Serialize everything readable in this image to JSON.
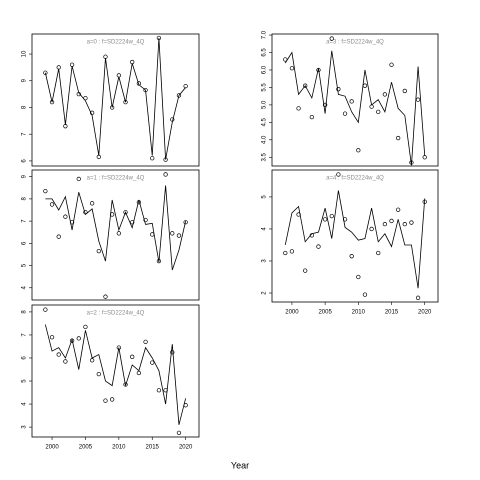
{
  "xlabel": "Year",
  "chart_data": [
    {
      "type": "line",
      "title": "a=0 : f=SD2224w_4Q",
      "x": [
        1999,
        2000,
        2001,
        2002,
        2003,
        2004,
        2005,
        2006,
        2007,
        2008,
        2009,
        2010,
        2011,
        2012,
        2013,
        2014,
        2015,
        2016,
        2017,
        2018,
        2019,
        2020
      ],
      "series": [
        {
          "style": "line",
          "color": "#000000",
          "values": [
            9.3,
            8.2,
            9.45,
            7.35,
            9.55,
            8.55,
            8.25,
            7.7,
            6.2,
            9.85,
            8.0,
            9.15,
            8.2,
            9.65,
            8.85,
            8.65,
            6.2,
            10.6,
            6.05,
            7.45,
            8.45,
            8.75
          ]
        },
        {
          "style": "points",
          "color": "#000000",
          "values": [
            9.3,
            8.2,
            9.5,
            7.3,
            9.6,
            8.5,
            8.35,
            7.8,
            6.15,
            9.9,
            8.0,
            9.2,
            8.2,
            9.7,
            8.9,
            8.65,
            6.1,
            10.6,
            6.05,
            7.55,
            8.45,
            8.8
          ]
        }
      ],
      "xlim": [
        1997,
        2022
      ],
      "ylim": [
        5.81,
        10.75
      ],
      "yticks": [
        6,
        7,
        8,
        9,
        10
      ]
    },
    {
      "type": "line",
      "title": "a=1 : f=SD2224w_4Q",
      "x": [
        1999,
        2000,
        2001,
        2002,
        2003,
        2004,
        2005,
        2006,
        2007,
        2008,
        2009,
        2010,
        2011,
        2012,
        2013,
        2014,
        2015,
        2016,
        2017,
        2018,
        2019,
        2020
      ],
      "series": [
        {
          "style": "line",
          "color": "#000000",
          "values": [
            8.0,
            8.0,
            7.5,
            8.1,
            6.6,
            8.3,
            7.3,
            7.55,
            6.1,
            5.2,
            7.95,
            6.6,
            7.4,
            6.7,
            7.95,
            6.85,
            6.9,
            5.15,
            8.6,
            4.8,
            5.7,
            7.0
          ]
        },
        {
          "style": "points",
          "color": "#000000",
          "values": [
            8.35,
            7.75,
            6.3,
            7.2,
            6.95,
            8.9,
            7.4,
            7.8,
            5.65,
            3.6,
            7.3,
            6.45,
            7.4,
            6.95,
            7.85,
            7.05,
            6.4,
            5.2,
            9.1,
            6.45,
            6.35,
            6.95
          ]
        }
      ],
      "xlim": [
        1997,
        2022
      ],
      "ylim": [
        3.45,
        9.3
      ],
      "yticks": [
        4,
        5,
        6,
        7,
        8,
        9
      ]
    },
    {
      "type": "line",
      "title": "a=2 : f=SD2224w_4Q",
      "x": [
        1999,
        2000,
        2001,
        2002,
        2003,
        2004,
        2005,
        2006,
        2007,
        2008,
        2009,
        2010,
        2011,
        2012,
        2013,
        2014,
        2015,
        2016,
        2017,
        2018,
        2019,
        2020
      ],
      "series": [
        {
          "style": "line",
          "color": "#000000",
          "values": [
            7.45,
            6.3,
            6.45,
            6.0,
            6.8,
            5.5,
            7.2,
            6.0,
            6.15,
            5.0,
            4.8,
            6.45,
            4.8,
            5.7,
            5.45,
            6.45,
            6.0,
            5.45,
            4.0,
            6.6,
            3.1,
            4.25
          ]
        },
        {
          "style": "points",
          "color": "#000000",
          "values": [
            8.1,
            6.9,
            6.15,
            5.85,
            6.75,
            6.85,
            7.35,
            5.9,
            5.3,
            4.15,
            4.2,
            6.45,
            4.85,
            6.05,
            5.35,
            6.7,
            5.8,
            4.6,
            4.6,
            6.25,
            2.75,
            3.95
          ]
        }
      ],
      "xlim": [
        1997,
        2022
      ],
      "ylim": [
        2.57,
        8.3
      ],
      "yticks": [
        3,
        4,
        5,
        6,
        7,
        8
      ],
      "xticks": [
        2000,
        2005,
        2010,
        2015,
        2020
      ]
    },
    {
      "type": "line",
      "title": "a=3 : f=SD2224w_4Q",
      "x": [
        1999,
        2000,
        2001,
        2002,
        2003,
        2004,
        2005,
        2006,
        2007,
        2008,
        2009,
        2010,
        2011,
        2012,
        2013,
        2014,
        2015,
        2016,
        2017,
        2018,
        2019,
        2020
      ],
      "series": [
        {
          "style": "line",
          "color": "#000000",
          "values": [
            6.2,
            6.5,
            5.3,
            5.55,
            5.2,
            6.05,
            4.75,
            6.55,
            5.3,
            5.25,
            4.8,
            4.5,
            6.0,
            5.0,
            5.15,
            4.8,
            5.65,
            4.9,
            4.7,
            3.27,
            6.1,
            3.55
          ]
        },
        {
          "style": "points",
          "color": "#000000",
          "values": [
            6.3,
            6.05,
            4.9,
            5.55,
            4.65,
            6.0,
            5.0,
            6.9,
            5.45,
            4.75,
            5.1,
            3.7,
            5.55,
            4.95,
            4.8,
            5.3,
            6.15,
            4.05,
            5.4,
            3.35,
            5.15,
            3.5
          ]
        }
      ],
      "xlim": [
        1997,
        2022
      ],
      "ylim": [
        3.25,
        7.03
      ],
      "yticks": [
        3.5,
        {
          "value": 4,
          "label": "4.0"
        },
        4.5,
        {
          "value": 5,
          "label": "5.0"
        },
        5.5,
        {
          "value": 6,
          "label": "6.0"
        },
        6.5,
        {
          "value": 7,
          "label": "7.0"
        }
      ]
    },
    {
      "type": "line",
      "title": "a=4 : f=SD2224w_4Q",
      "x": [
        1999,
        2000,
        2001,
        2002,
        2003,
        2004,
        2005,
        2006,
        2007,
        2008,
        2009,
        2010,
        2011,
        2012,
        2013,
        2014,
        2015,
        2016,
        2017,
        2018,
        2019,
        2020
      ],
      "series": [
        {
          "style": "line",
          "color": "#000000",
          "values": [
            3.5,
            4.5,
            4.7,
            3.6,
            3.85,
            3.9,
            4.65,
            3.7,
            5.2,
            4.05,
            3.9,
            3.65,
            3.7,
            4.65,
            3.6,
            3.85,
            3.45,
            4.3,
            3.5,
            3.5,
            2.15,
            4.95
          ]
        },
        {
          "style": "points",
          "color": "#000000",
          "values": [
            3.25,
            3.3,
            4.45,
            2.7,
            3.8,
            3.45,
            4.3,
            4.4,
            5.7,
            4.3,
            3.15,
            2.5,
            1.95,
            4.0,
            3.25,
            4.15,
            4.25,
            4.6,
            4.15,
            4.2,
            1.85,
            4.85
          ]
        }
      ],
      "xlim": [
        1997,
        2022
      ],
      "ylim": [
        1.72,
        5.84
      ],
      "yticks": [
        2,
        3,
        4,
        5
      ],
      "xticks": [
        2000,
        2005,
        2010,
        2015,
        2020
      ]
    }
  ]
}
